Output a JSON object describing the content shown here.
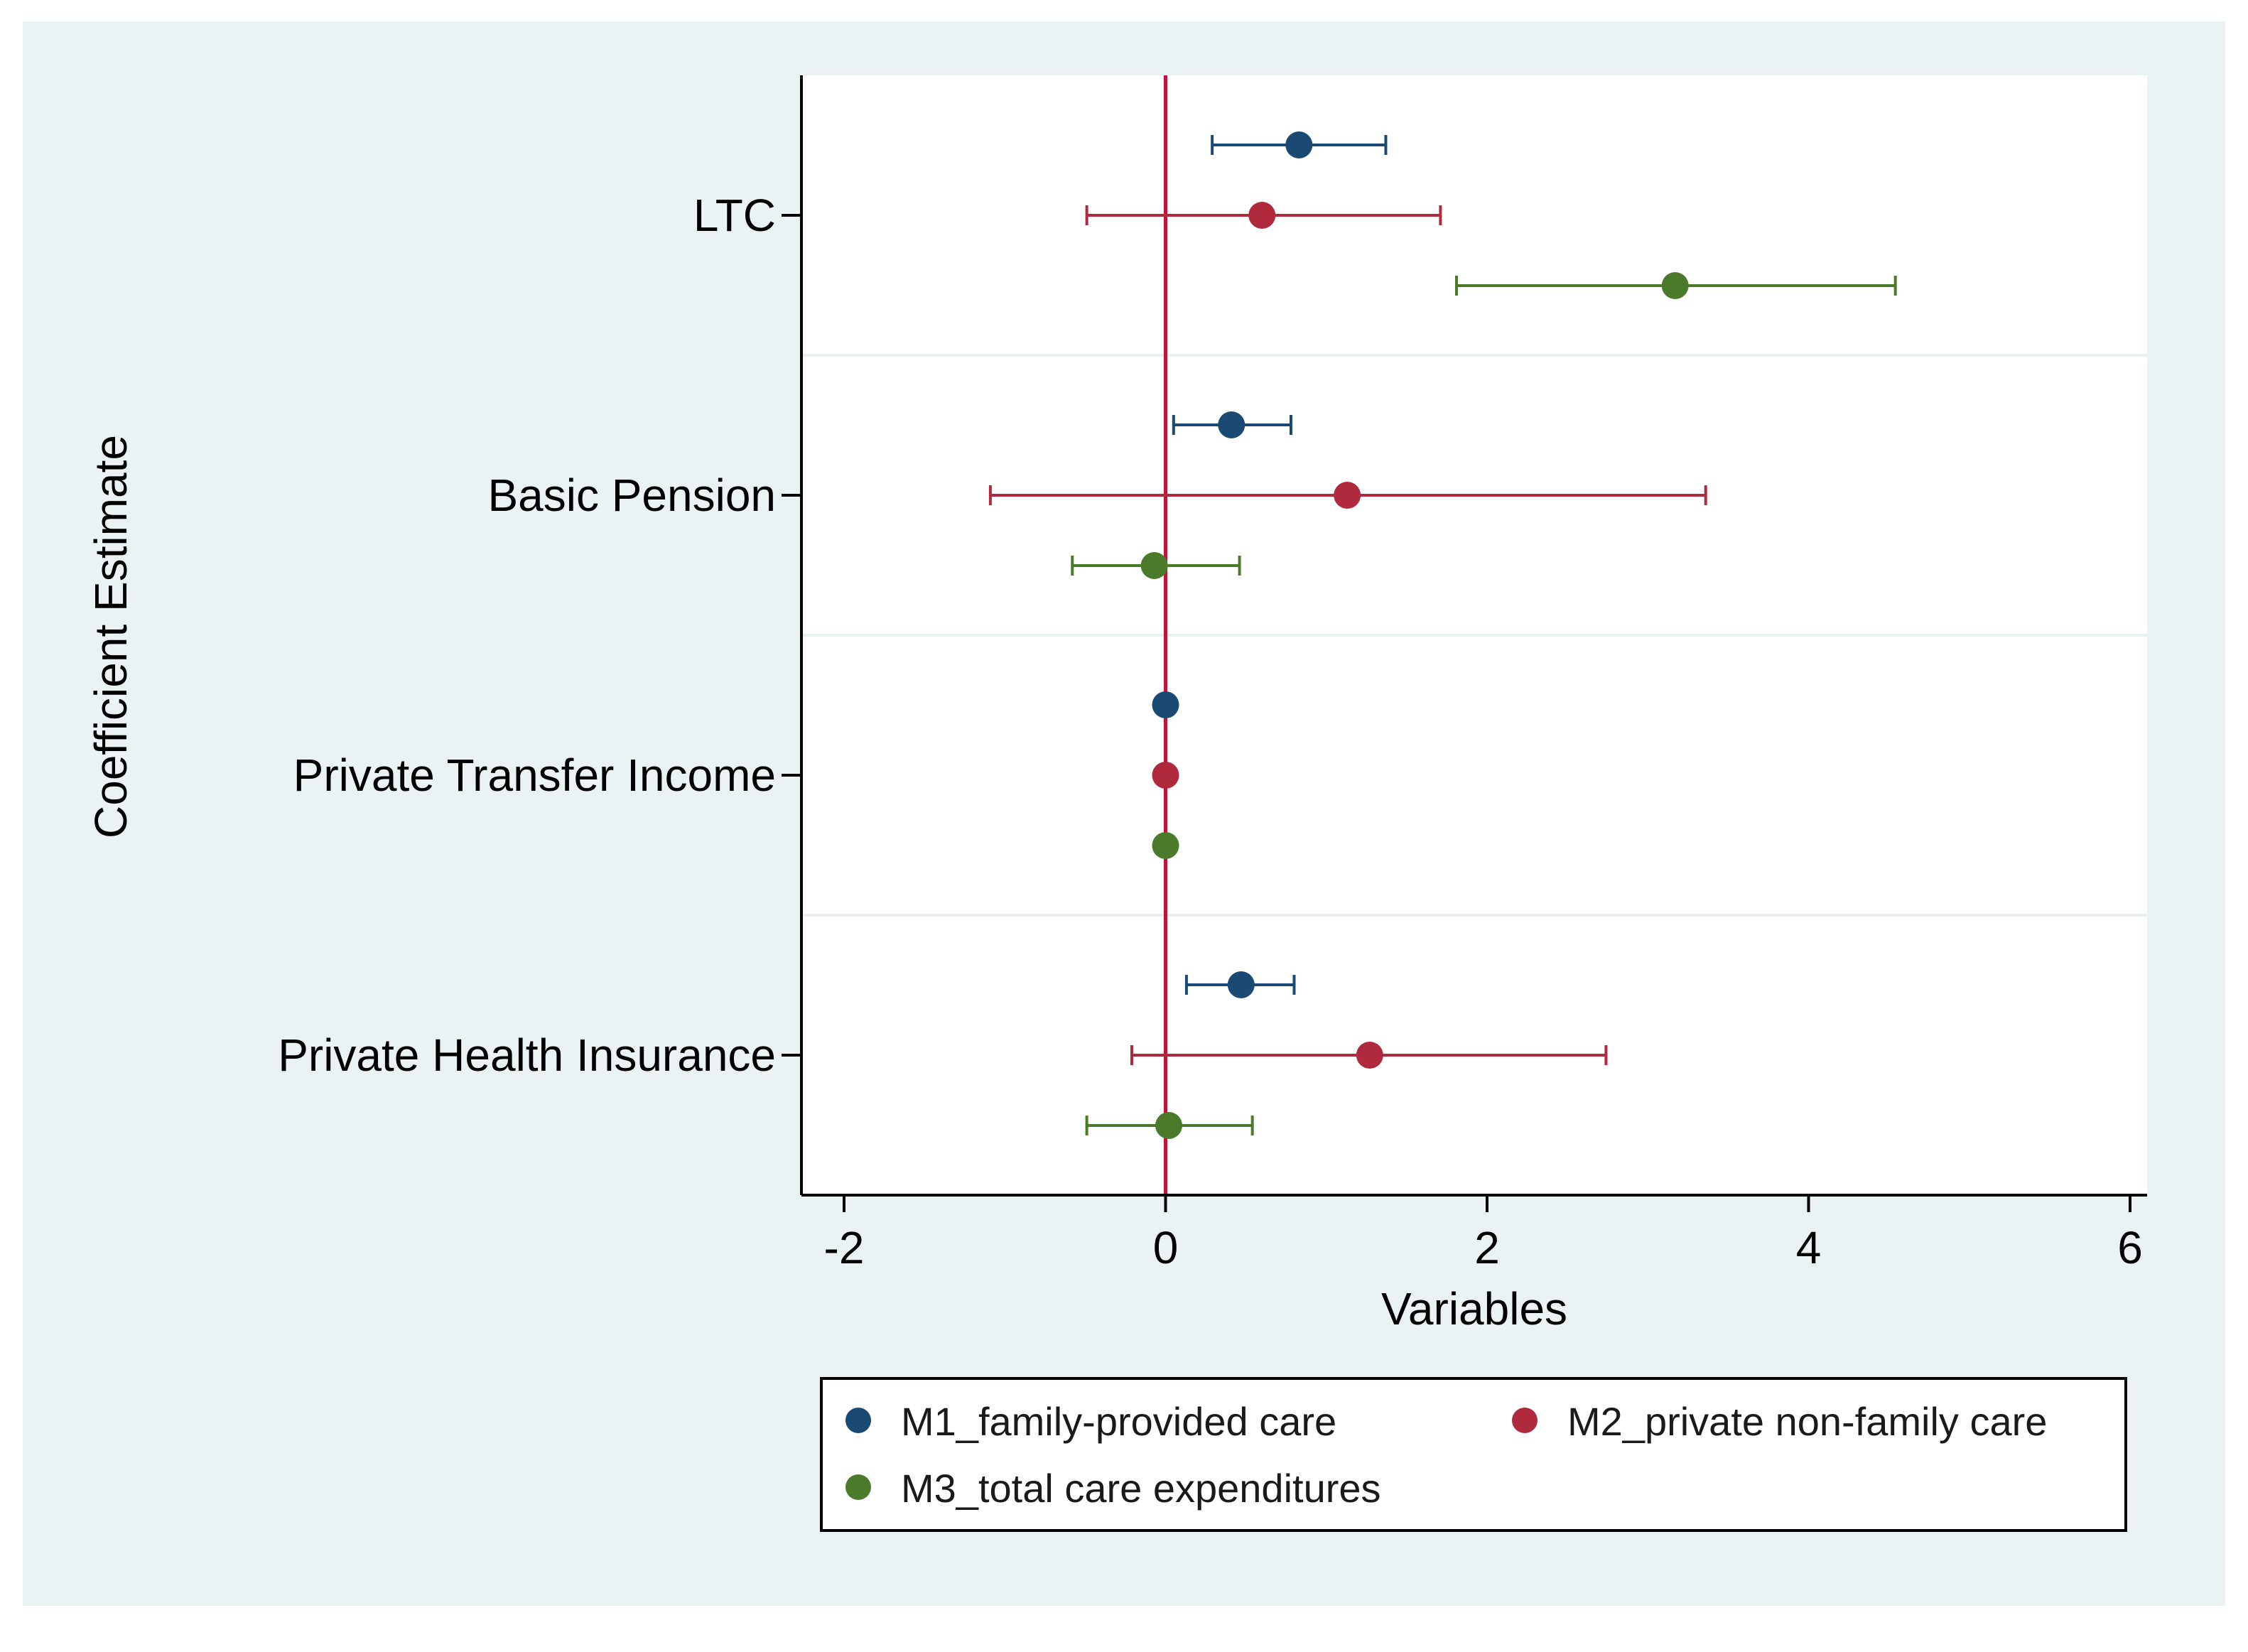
{
  "chart_data": {
    "type": "coefficient_plot",
    "title": "",
    "xlabel": "Variables",
    "ylabel": "Coefficient Estimate",
    "xlim": [
      -2,
      6
    ],
    "xticks": [
      -2,
      0,
      2,
      4,
      6
    ],
    "reference_line_x": 0,
    "legend_position": "bottom",
    "categories": [
      "LTC",
      "Basic Pension",
      "Private Transfer Income",
      "Private Health Insurance"
    ],
    "series": [
      {
        "name": "M1_family-provided care",
        "color": "#1a4a74",
        "points": [
          {
            "category": "LTC",
            "estimate": 0.83,
            "ci_low": 0.29,
            "ci_high": 1.37
          },
          {
            "category": "Basic Pension",
            "estimate": 0.41,
            "ci_low": 0.05,
            "ci_high": 0.78
          },
          {
            "category": "Private Transfer Income",
            "estimate": 0.0,
            "ci_low": 0.0,
            "ci_high": 0.0
          },
          {
            "category": "Private Health Insurance",
            "estimate": 0.47,
            "ci_low": 0.13,
            "ci_high": 0.8
          }
        ]
      },
      {
        "name": "M2_private non-family care",
        "color": "#b02a3e",
        "points": [
          {
            "category": "LTC",
            "estimate": 0.6,
            "ci_low": -0.49,
            "ci_high": 1.71
          },
          {
            "category": "Basic Pension",
            "estimate": 1.13,
            "ci_low": -1.09,
            "ci_high": 3.36
          },
          {
            "category": "Private Transfer Income",
            "estimate": 0.0,
            "ci_low": 0.0,
            "ci_high": 0.0
          },
          {
            "category": "Private Health Insurance",
            "estimate": 1.27,
            "ci_low": -0.21,
            "ci_high": 2.74
          }
        ]
      },
      {
        "name": "M3_total care expenditures",
        "color": "#4c7a2b",
        "points": [
          {
            "category": "LTC",
            "estimate": 3.17,
            "ci_low": 1.81,
            "ci_high": 4.54
          },
          {
            "category": "Basic Pension",
            "estimate": -0.07,
            "ci_low": -0.58,
            "ci_high": 0.46
          },
          {
            "category": "Private Transfer Income",
            "estimate": 0.0,
            "ci_low": 0.0,
            "ci_high": 0.0
          },
          {
            "category": "Private Health Insurance",
            "estimate": 0.02,
            "ci_low": -0.49,
            "ci_high": 0.54
          }
        ]
      }
    ],
    "colors": {
      "outer_background": "#eaf2f3",
      "plot_background": "#ffffff",
      "reference_line": "#c2143b",
      "axis": "#000000",
      "gridline": "#e8f0f1"
    }
  }
}
